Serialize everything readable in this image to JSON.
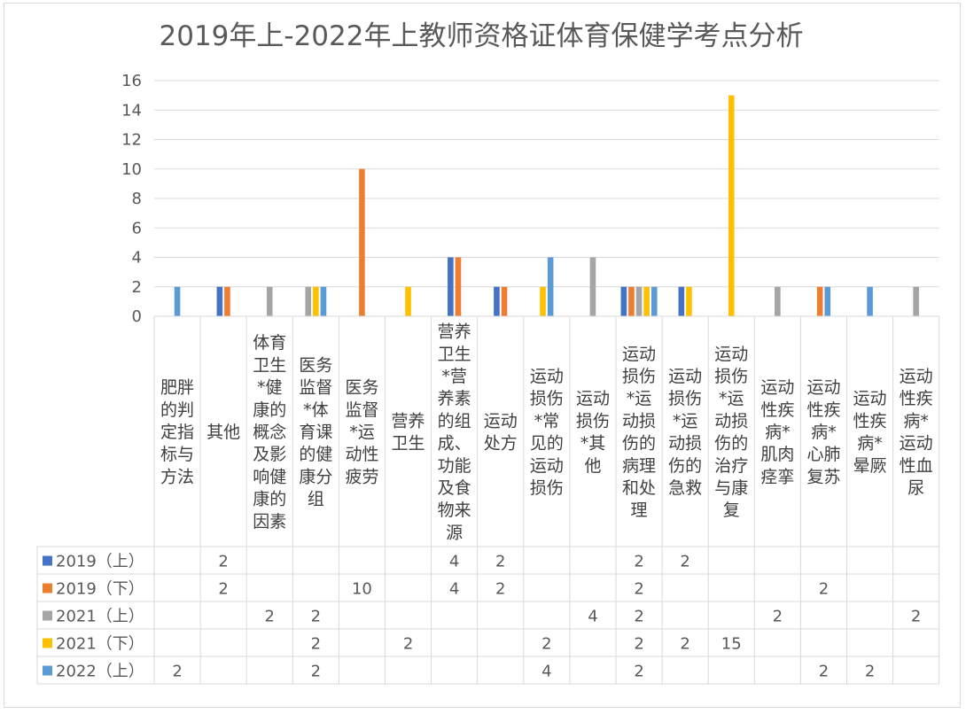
{
  "chart_data": {
    "type": "bar",
    "title": "2019年上-2022年上教师资格证体育保健学考点分析",
    "xlabel": "",
    "ylabel": "",
    "ylim": [
      0,
      16
    ],
    "yticks": [
      0,
      2,
      4,
      6,
      8,
      10,
      12,
      14,
      16
    ],
    "grid": true,
    "legend": "data-table-left",
    "categories": [
      "肥胖的判定指标与方法",
      "其他",
      "体育卫生*健康的概念及影响健康的因素",
      "医务监督*体育课的健康分组",
      "医务监督*运动性疲劳",
      "营养卫生",
      "营养卫生*营养素的组成、功能及食物来源",
      "运动处方",
      "运动损伤*常见的运动损伤",
      "运动损伤*其他",
      "运动损伤*运动损伤的病理和处理",
      "运动损伤*运动损伤的急救",
      "运动损伤*运动损伤的治疗与康复",
      "运动性疾病*肌肉痉挛",
      "运动性疾病*心肺复苏",
      "运动性疾病*晕厥",
      "运动性疾病*运动性血尿"
    ],
    "series": [
      {
        "name": "2019（上）",
        "color": "#4472c4",
        "values": [
          null,
          2,
          null,
          null,
          null,
          null,
          4,
          2,
          null,
          null,
          2,
          2,
          null,
          null,
          null,
          null,
          null
        ]
      },
      {
        "name": "2019（下）",
        "color": "#ed7d31",
        "values": [
          null,
          2,
          null,
          null,
          10,
          null,
          4,
          2,
          null,
          null,
          2,
          null,
          null,
          null,
          2,
          null,
          null
        ]
      },
      {
        "name": "2021（上）",
        "color": "#a5a5a5",
        "values": [
          null,
          null,
          2,
          2,
          null,
          null,
          null,
          null,
          null,
          4,
          2,
          null,
          null,
          2,
          null,
          null,
          2
        ]
      },
      {
        "name": "2021（下）",
        "color": "#ffc000",
        "values": [
          null,
          null,
          null,
          2,
          null,
          2,
          null,
          null,
          2,
          null,
          2,
          2,
          15,
          null,
          null,
          null,
          null
        ]
      },
      {
        "name": "2022（上）",
        "color": "#5b9bd5",
        "values": [
          2,
          null,
          null,
          2,
          null,
          null,
          null,
          null,
          4,
          null,
          2,
          null,
          null,
          null,
          2,
          2,
          null
        ]
      }
    ]
  }
}
